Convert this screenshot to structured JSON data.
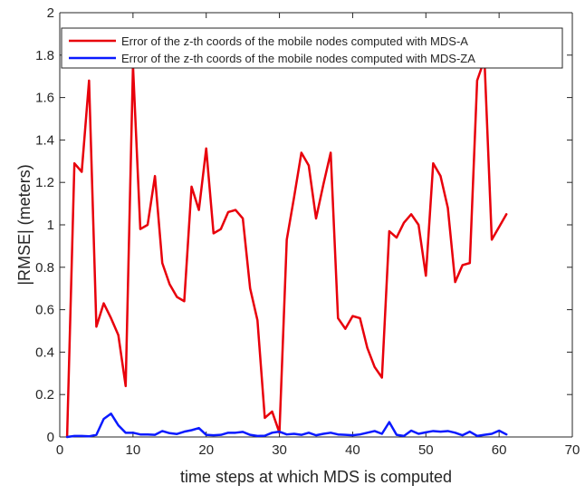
{
  "chart_data": {
    "type": "line",
    "xlabel": "time steps at which MDS is computed",
    "ylabel": "|RMSE| (meters)",
    "xlim": [
      0,
      70
    ],
    "ylim": [
      0,
      2
    ],
    "x_ticks": [
      0,
      10,
      20,
      30,
      40,
      50,
      60,
      70
    ],
    "y_ticks": [
      0,
      0.2,
      0.4,
      0.6,
      0.8,
      1,
      1.2,
      1.4,
      1.6,
      1.8,
      2
    ],
    "x_tick_labels": [
      "0",
      "10",
      "20",
      "30",
      "40",
      "50",
      "60",
      "70"
    ],
    "y_tick_labels": [
      "0",
      "0.2",
      "0.4",
      "0.6",
      "0.8",
      "1",
      "1.2",
      "1.4",
      "1.6",
      "1.8",
      "2"
    ],
    "grid": false,
    "legend_position": "top-left",
    "x": [
      1,
      2,
      3,
      4,
      5,
      6,
      7,
      8,
      9,
      10,
      11,
      12,
      13,
      14,
      15,
      16,
      17,
      18,
      19,
      20,
      21,
      22,
      23,
      24,
      25,
      26,
      27,
      28,
      29,
      30,
      31,
      32,
      33,
      34,
      35,
      36,
      37,
      38,
      39,
      40,
      41,
      42,
      43,
      44,
      45,
      46,
      47,
      48,
      49,
      50,
      51,
      52,
      53,
      54,
      55,
      56,
      57,
      58,
      59,
      60,
      61
    ],
    "series": [
      {
        "name": "Error of the z-th coords of the mobile nodes computed with MDS-A",
        "color": "#e8000b",
        "values": [
          0.0,
          1.29,
          1.25,
          1.68,
          0.52,
          0.63,
          0.56,
          0.48,
          0.24,
          1.75,
          0.98,
          1.0,
          1.23,
          0.82,
          0.72,
          0.66,
          0.64,
          1.18,
          1.07,
          1.36,
          0.96,
          0.98,
          1.06,
          1.07,
          1.03,
          0.7,
          0.55,
          0.09,
          0.12,
          0.02,
          0.93,
          1.13,
          1.34,
          1.28,
          1.03,
          1.19,
          1.34,
          0.56,
          0.51,
          0.57,
          0.56,
          0.42,
          0.33,
          0.28,
          0.97,
          0.94,
          1.01,
          1.05,
          1.0,
          0.76,
          1.29,
          1.23,
          1.08,
          0.73,
          0.81,
          0.82,
          1.68,
          1.78,
          0.93,
          0.99,
          1.05
        ]
      },
      {
        "name": "Error of the z-th coords of the mobile nodes computed with MDS-ZA",
        "color": "#0a1aff",
        "values": [
          0.0,
          0.005,
          0.005,
          0.003,
          0.01,
          0.085,
          0.11,
          0.055,
          0.02,
          0.02,
          0.012,
          0.012,
          0.01,
          0.028,
          0.018,
          0.014,
          0.025,
          0.032,
          0.042,
          0.01,
          0.008,
          0.01,
          0.02,
          0.02,
          0.024,
          0.01,
          0.005,
          0.006,
          0.02,
          0.025,
          0.012,
          0.015,
          0.01,
          0.02,
          0.008,
          0.015,
          0.02,
          0.012,
          0.01,
          0.008,
          0.012,
          0.02,
          0.028,
          0.015,
          0.07,
          0.01,
          0.005,
          0.03,
          0.015,
          0.022,
          0.028,
          0.025,
          0.028,
          0.02,
          0.008,
          0.025,
          0.005,
          0.01,
          0.015,
          0.03,
          0.012
        ]
      }
    ]
  }
}
